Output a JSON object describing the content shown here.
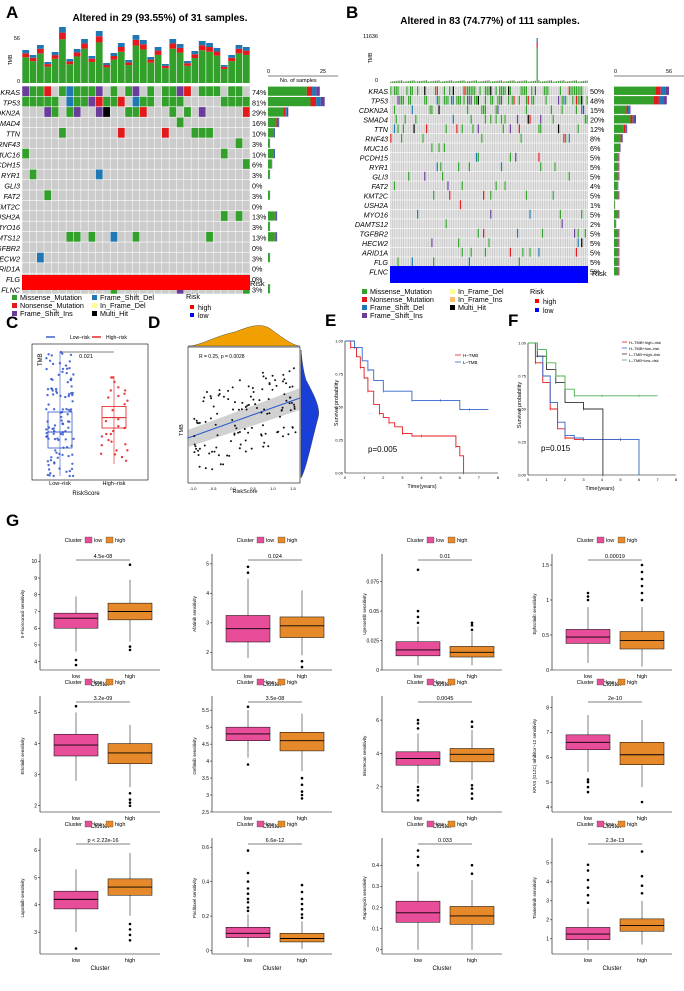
{
  "panelA": {
    "letter": "A",
    "title": "Altered in 29 (93.55%) of 31 samples.",
    "tmb_label": "TMB",
    "tmb_max": "56",
    "tmb_min": "0",
    "count_axis": [
      "0",
      "25"
    ],
    "count_label": "No. of samples",
    "genes": [
      "KRAS",
      "TP53",
      "CDKN2A",
      "SMAD4",
      "TTN",
      "RNF43",
      "MUC16",
      "PCDH15",
      "RYR1",
      "GLI3",
      "FAT2",
      "KMT2C",
      "USH2A",
      "MYO16",
      "DAMTS12",
      "TGFBR2",
      "HECW2",
      "ARID1A",
      "FLG",
      "FLNC"
    ],
    "pcts": [
      "74%",
      "81%",
      "29%",
      "16%",
      "10%",
      "3%",
      "10%",
      "6%",
      "3%",
      "0%",
      "3%",
      "0%",
      "13%",
      "3%",
      "13%",
      "0%",
      "3%",
      "0%",
      "0%",
      "3%"
    ],
    "risk_label": "Risk",
    "legend_mut": [
      "Missense_Mutation",
      "Frame_Shift_Del",
      "Nonsense_Mutation",
      "In_Frame_Del",
      "Frame_Shift_Ins",
      "Multi_Hit"
    ],
    "legend_risk_title": "Risk",
    "legend_risk": [
      "high",
      "low"
    ]
  },
  "panelB": {
    "letter": "B",
    "title": "Altered in 83 (74.77%) of 111 samples.",
    "tmb_label": "TMB",
    "tmb_max": "11636",
    "tmb_min": "0",
    "count_axis": [
      "0",
      "56"
    ],
    "count_label": "",
    "genes": [
      "KRAS",
      "TP53",
      "CDKN2A",
      "SMAD4",
      "TTN",
      "RNF43",
      "MUC16",
      "PCDH15",
      "RYR1",
      "GLI3",
      "FAT2",
      "KMT2C",
      "USH2A",
      "MYO16",
      "DAMTS12",
      "TGFBR2",
      "HECW2",
      "ARID1A",
      "FLG",
      "FLNC"
    ],
    "pcts": [
      "50%",
      "48%",
      "15%",
      "20%",
      "12%",
      "8%",
      "6%",
      "5%",
      "5%",
      "5%",
      "4%",
      "5%",
      "1%",
      "5%",
      "2%",
      "5%",
      "5%",
      "5%",
      "5%",
      "5%"
    ],
    "risk_label": "Risk",
    "legend_mut": [
      "Missense_Mutation",
      "In_Frame_Del",
      "Nonsense_Mutation",
      "In_Frame_Ins",
      "Frame_Shift_Del",
      "Multi_Hit",
      "Frame_Shift_Ins"
    ],
    "legend_risk_title": "Risk",
    "legend_risk": [
      "high",
      "low"
    ]
  },
  "colors": {
    "missense": "#33a02c",
    "nonsense": "#e31a1c",
    "frame_shift_ins": "#6a3d9a",
    "frame_shift_del": "#1f78b4",
    "in_frame_del": "#ffff99",
    "in_frame_ins": "#fdbf6f",
    "multi_hit": "#000000",
    "grey": "#cccccc",
    "high": "#ff0000",
    "low": "#0000ff",
    "box_low": "#e84d9a",
    "box_high": "#e5892b",
    "density": "#f0a000"
  },
  "panelC": {
    "letter": "C",
    "legend": [
      "Low–risk",
      "High–risk"
    ],
    "pvalue": "0.021",
    "ylabel": "TMB",
    "xlabel": "RiskScore",
    "categories": [
      "Low–risk",
      "High–risk"
    ]
  },
  "panelD": {
    "letter": "D",
    "annotation": "R = 0.25, p = 0.0028",
    "ylabel": "TMB",
    "xlabel": "RiskScore",
    "xticks": [
      "-1.0",
      "-0.5",
      "0.0",
      "0.5",
      "1.0",
      "1.5"
    ]
  },
  "panelE": {
    "letter": "E",
    "legend": [
      "H–TMB",
      "L–TMB"
    ],
    "pvalue": "p=0.005",
    "ylabel": "Survival probability",
    "xlabel": "Time(years)",
    "yticks": [
      "0.00",
      "0.25",
      "0.50",
      "0.75",
      "1.00"
    ],
    "xticks": [
      "0",
      "1",
      "2",
      "3",
      "4",
      "5",
      "6",
      "7",
      "8"
    ]
  },
  "panelF": {
    "letter": "F",
    "legend": [
      "H–TMB+high–risk",
      "H–TMB+low–risk",
      "L–TMB+high–risk",
      "L–TMB+low–risk"
    ],
    "pvalue": "p=0.015",
    "ylabel": "Survival probability",
    "xlabel": "Time(years)",
    "yticks": [
      "0.00",
      "0.25",
      "0.50",
      "0.75",
      "1.00"
    ],
    "xticks": [
      "0",
      "1",
      "2",
      "3",
      "4",
      "5",
      "6",
      "7",
      "8"
    ]
  },
  "panelG": {
    "letter": "G",
    "legend_title": "Cluster",
    "legend_low": "low",
    "legend_high": "high",
    "xlabel": "Cluster",
    "categories": [
      "low",
      "high"
    ]
  },
  "chart_data": [
    {
      "type": "box",
      "panel": "C",
      "categories": [
        "Low–risk",
        "High–risk"
      ],
      "series": [
        {
          "name": "Low–risk",
          "stats": {
            "min": 0.05,
            "q1": 0.4,
            "median": 0.6,
            "q3": 0.85,
            "max": 1.6
          }
        },
        {
          "name": "High–risk",
          "stats": {
            "min": 0.2,
            "q1": 0.65,
            "median": 0.78,
            "q3": 0.92,
            "max": 1.3
          }
        }
      ],
      "pvalue": "0.021"
    },
    {
      "type": "scatter",
      "panel": "D",
      "annotation": "R = 0.25, p = 0.0028",
      "xlim": [
        -1.2,
        1.6
      ],
      "regression": {
        "x": [
          -1.0,
          1.5
        ],
        "y": [
          0.35,
          0.6
        ]
      }
    },
    {
      "type": "line",
      "panel": "E",
      "title": "",
      "xlabel": "Time(years)",
      "ylabel": "Survival probability",
      "xlim": [
        0,
        8
      ],
      "ylim": [
        0,
        1
      ],
      "series": [
        {
          "name": "H–TMB",
          "color": "#e31a1c",
          "x": [
            0,
            0.3,
            0.6,
            0.8,
            1.0,
            1.2,
            1.5,
            1.8,
            2.0,
            2.3,
            2.6,
            3.0,
            3.5,
            4.0,
            5.0,
            5.8,
            6.0,
            6.2
          ],
          "y": [
            1.0,
            0.95,
            0.88,
            0.8,
            0.72,
            0.62,
            0.52,
            0.45,
            0.42,
            0.38,
            0.35,
            0.3,
            0.28,
            0.28,
            0.28,
            0.2,
            0.13,
            0.0
          ]
        },
        {
          "name": "L–TMB",
          "color": "#3366cc",
          "x": [
            0,
            0.5,
            0.9,
            1.2,
            1.5,
            2.0,
            3.0,
            3.5,
            4.0,
            5.0,
            6.0,
            6.5,
            7.5
          ],
          "y": [
            1.0,
            0.95,
            0.85,
            0.78,
            0.7,
            0.62,
            0.62,
            0.55,
            0.55,
            0.55,
            0.48,
            0.48,
            0.48
          ]
        }
      ],
      "pvalue": "p=0.005"
    },
    {
      "type": "line",
      "panel": "F",
      "xlabel": "Time(years)",
      "ylabel": "Survival probability",
      "xlim": [
        0,
        8
      ],
      "ylim": [
        0,
        1
      ],
      "series": [
        {
          "name": "H–TMB+high–risk",
          "color": "#e31a1c",
          "x": [
            0,
            0.4,
            0.8,
            1.2,
            1.6,
            2.0,
            2.5,
            3.0,
            4.0,
            5.0
          ],
          "y": [
            1.0,
            0.85,
            0.7,
            0.5,
            0.35,
            0.28,
            0.27,
            0.27,
            0.27,
            0.27
          ]
        },
        {
          "name": "H–TMB+low–risk",
          "color": "#3366cc",
          "x": [
            0,
            0.4,
            0.8,
            1.2,
            1.6,
            2.0,
            2.5,
            3.0,
            4.0,
            5.0,
            6.0
          ],
          "y": [
            1.0,
            0.9,
            0.75,
            0.55,
            0.4,
            0.3,
            0.28,
            0.27,
            0.27,
            0.27,
            0.0
          ]
        },
        {
          "name": "L–TMB+high–risk",
          "color": "#333333",
          "x": [
            0,
            0.5,
            1.0,
            1.5,
            2.0,
            3.0,
            4.0,
            4.05
          ],
          "y": [
            1.0,
            0.9,
            0.8,
            0.7,
            0.55,
            0.5,
            0.5,
            0.0
          ]
        },
        {
          "name": "L–TMB+low–risk",
          "color": "#4caf50",
          "x": [
            0,
            0.5,
            1.0,
            1.5,
            2.0,
            2.5,
            3.0,
            4.0,
            5.0,
            6.0,
            7.0
          ],
          "y": [
            1.0,
            0.95,
            0.85,
            0.75,
            0.65,
            0.6,
            0.6,
            0.6,
            0.6,
            0.6,
            0.6
          ]
        }
      ],
      "pvalue": "p=0.015"
    },
    {
      "type": "box",
      "panel": "G",
      "plots": [
        {
          "ylabel": "5-Fluorouracil sensitivity",
          "pvalue": "4.5e-08",
          "ylim": [
            3.5,
            10.2
          ],
          "yticks": [
            4,
            5,
            6,
            7,
            8,
            9,
            10
          ],
          "low": {
            "min": 4.6,
            "q1": 6.0,
            "median": 6.6,
            "q3": 6.9,
            "max": 7.9,
            "outliers": [
              3.8,
              4.1
            ]
          },
          "high": {
            "min": 5.2,
            "q1": 6.5,
            "median": 7.0,
            "q3": 7.5,
            "max": 8.9,
            "outliers": [
              4.7,
              4.9,
              9.8
            ]
          }
        },
        {
          "ylabel": "Afatinib sensitivity",
          "pvalue": "0.024",
          "ylim": [
            1.4,
            5.2
          ],
          "yticks": [
            2,
            3,
            4,
            5
          ],
          "low": {
            "min": 1.8,
            "q1": 2.35,
            "median": 2.8,
            "q3": 3.25,
            "max": 4.5,
            "outliers": [
              4.7,
              4.9
            ]
          },
          "high": {
            "min": 1.9,
            "q1": 2.5,
            "median": 2.9,
            "q3": 3.2,
            "max": 4.1,
            "outliers": [
              1.7,
              1.5
            ]
          }
        },
        {
          "ylabel": "Uprosertib sensitivity",
          "pvalue": "0.01",
          "ylim": [
            0.0,
            0.095
          ],
          "yticks": [
            0.0,
            0.025,
            0.05,
            0.075
          ],
          "low": {
            "min": 0.004,
            "q1": 0.012,
            "median": 0.017,
            "q3": 0.024,
            "max": 0.037,
            "outliers": [
              0.04,
              0.045,
              0.05,
              0.085
            ]
          },
          "high": {
            "min": 0.004,
            "q1": 0.011,
            "median": 0.015,
            "q3": 0.02,
            "max": 0.032,
            "outliers": [
              0.034,
              0.038,
              0.04
            ]
          }
        },
        {
          "ylabel": "Ephrotinib sensitivity",
          "pvalue": "0.00019",
          "ylim": [
            0.0,
            1.6
          ],
          "yticks": [
            0.0,
            0.5,
            1.0,
            1.5
          ],
          "low": {
            "min": 0.1,
            "q1": 0.38,
            "median": 0.47,
            "q3": 0.58,
            "max": 0.9,
            "outliers": [
              1.0,
              1.05,
              1.1
            ]
          },
          "high": {
            "min": 0.05,
            "q1": 0.3,
            "median": 0.42,
            "q3": 0.55,
            "max": 0.9,
            "outliers": [
              1.0,
              1.1,
              1.2,
              1.3,
              1.4,
              1.5
            ]
          }
        },
        {
          "ylabel": "Erlotinib sensitivity",
          "pvalue": "3.2e-09",
          "ylim": [
            1.8,
            5.4
          ],
          "yticks": [
            2,
            3,
            4,
            5
          ],
          "low": {
            "min": 2.8,
            "q1": 3.6,
            "median": 3.95,
            "q3": 4.3,
            "max": 5.0,
            "outliers": [
              5.2
            ]
          },
          "high": {
            "min": 2.6,
            "q1": 3.35,
            "median": 3.7,
            "q3": 4.0,
            "max": 4.6,
            "outliers": [
              2.4,
              2.2,
              2.1,
              2.0
            ]
          }
        },
        {
          "ylabel": "Gefitinib sensitivity",
          "pvalue": "3.5e-08",
          "ylim": [
            2.5,
            5.8
          ],
          "yticks": [
            2.5,
            3.0,
            3.5,
            4.0,
            4.5,
            5.0,
            5.5
          ],
          "low": {
            "min": 4.1,
            "q1": 4.6,
            "median": 4.8,
            "q3": 5.0,
            "max": 5.5,
            "outliers": [
              3.9,
              5.6
            ]
          },
          "high": {
            "min": 3.7,
            "q1": 4.3,
            "median": 4.6,
            "q3": 4.85,
            "max": 5.4,
            "outliers": [
              3.5,
              3.3,
              3.1,
              3.0,
              2.9
            ]
          }
        },
        {
          "ylabel": "Irinotecan sensitivity",
          "pvalue": "0.0045",
          "ylim": [
            0.5,
            7.2
          ],
          "yticks": [
            2,
            4,
            6
          ],
          "low": {
            "min": 2.2,
            "q1": 3.3,
            "median": 3.7,
            "q3": 4.1,
            "max": 5.2,
            "outliers": [
              1.2,
              1.5,
              1.8,
              2.0,
              5.5,
              5.8,
              6.0
            ]
          },
          "high": {
            "min": 2.4,
            "q1": 3.5,
            "median": 3.95,
            "q3": 4.3,
            "max": 5.4,
            "outliers": [
              1.3,
              1.6,
              1.9,
              2.1,
              5.6,
              5.9
            ]
          }
        },
        {
          "ylabel": "KRAS (G12C) Inhibitor−12 sensitivity",
          "pvalue": "2e-10",
          "ylim": [
            3.8,
            8.3
          ],
          "yticks": [
            4,
            5,
            6,
            7,
            8
          ],
          "low": {
            "min": 5.4,
            "q1": 6.3,
            "median": 6.6,
            "q3": 6.9,
            "max": 7.7,
            "outliers": [
              4.6,
              4.8,
              5.0,
              5.1
            ]
          },
          "high": {
            "min": 4.8,
            "q1": 5.7,
            "median": 6.1,
            "q3": 6.6,
            "max": 7.5,
            "outliers": [
              4.2
            ]
          }
        },
        {
          "ylabel": "Lapatinib sensitivity",
          "pvalue": "p < 2.22e-16",
          "ylim": [
            2.2,
            6.3
          ],
          "yticks": [
            3,
            4,
            5,
            6
          ],
          "low": {
            "min": 3.0,
            "q1": 3.85,
            "median": 4.2,
            "q3": 4.5,
            "max": 5.3,
            "outliers": [
              2.4
            ]
          },
          "high": {
            "min": 3.6,
            "q1": 4.35,
            "median": 4.65,
            "q3": 4.95,
            "max": 5.9,
            "outliers": [
              2.7,
              2.9,
              3.1,
              3.3
            ]
          }
        },
        {
          "ylabel": "Paclitaxel sensitivity",
          "pvalue": "6.6e-12",
          "ylim": [
            -0.02,
            0.63
          ],
          "yticks": [
            0.0,
            0.2,
            0.4,
            0.6
          ],
          "low": {
            "min": 0.02,
            "q1": 0.075,
            "median": 0.1,
            "q3": 0.135,
            "max": 0.21,
            "outliers": [
              0.23,
              0.25,
              0.28,
              0.3,
              0.33,
              0.36,
              0.4,
              0.45,
              0.58
            ]
          },
          "high": {
            "min": 0.01,
            "q1": 0.05,
            "median": 0.07,
            "q3": 0.1,
            "max": 0.17,
            "outliers": [
              0.19,
              0.21,
              0.24,
              0.27,
              0.3,
              0.34,
              0.38
            ]
          }
        },
        {
          "ylabel": "Rapamycin sensitivity",
          "pvalue": "0.033",
          "ylim": [
            -0.02,
            0.51
          ],
          "yticks": [
            0.0,
            0.1,
            0.2,
            0.3,
            0.4
          ],
          "low": {
            "min": 0.0,
            "q1": 0.13,
            "median": 0.175,
            "q3": 0.23,
            "max": 0.37,
            "outliers": [
              0.4,
              0.44,
              0.47
            ]
          },
          "high": {
            "min": 0.0,
            "q1": 0.12,
            "median": 0.16,
            "q3": 0.205,
            "max": 0.33,
            "outliers": [
              0.36,
              0.4
            ]
          }
        },
        {
          "ylabel": "Trametinib sensitivity",
          "pvalue": "2.3e-13",
          "ylim": [
            0.2,
            6.1
          ],
          "yticks": [
            1,
            2,
            3,
            4,
            5
          ],
          "low": {
            "min": 0.4,
            "q1": 0.95,
            "median": 1.25,
            "q3": 1.6,
            "max": 2.6,
            "outliers": [
              2.9,
              3.3,
              3.7,
              4.1,
              4.6,
              4.9
            ]
          },
          "high": {
            "min": 0.7,
            "q1": 1.4,
            "median": 1.7,
            "q3": 2.05,
            "max": 3.0,
            "outliers": [
              3.4,
              3.8,
              4.3,
              5.6
            ]
          }
        }
      ]
    }
  ]
}
